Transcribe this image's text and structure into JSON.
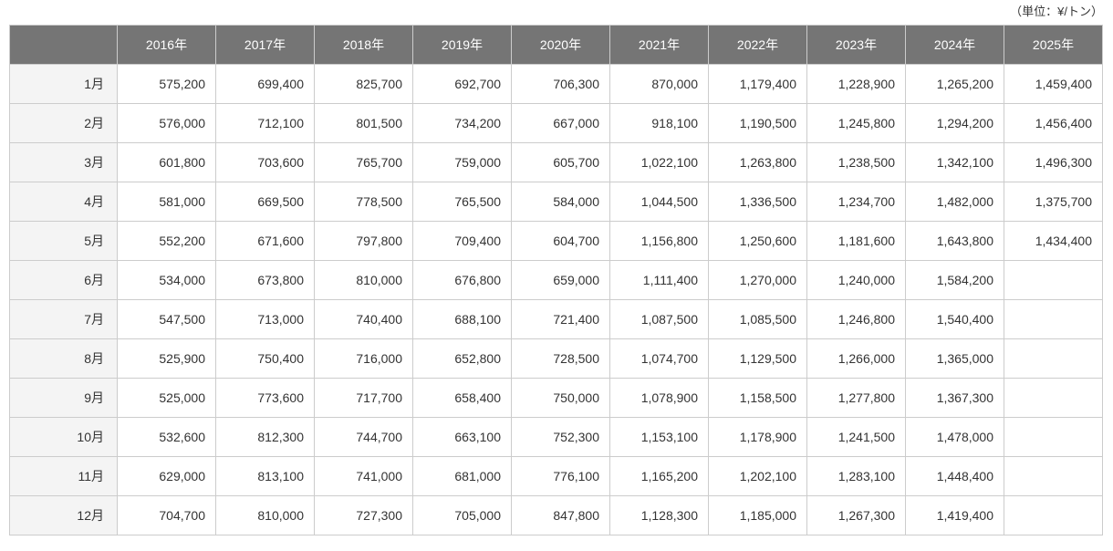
{
  "unit_label": "（単位：¥/トン）",
  "colors": {
    "header_background": "#757575",
    "header_text": "#ffffff",
    "row_label_background": "#f4f4f4",
    "cell_text": "#333333",
    "border": "#cccccc"
  },
  "table": {
    "corner_label": "",
    "columns": [
      "2016年",
      "2017年",
      "2018年",
      "2019年",
      "2020年",
      "2021年",
      "2022年",
      "2023年",
      "2024年",
      "2025年"
    ],
    "rows": [
      {
        "month": "1月",
        "values": [
          "575,200",
          "699,400",
          "825,700",
          "692,700",
          "706,300",
          "870,000",
          "1,179,400",
          "1,228,900",
          "1,265,200",
          "1,459,400"
        ]
      },
      {
        "month": "2月",
        "values": [
          "576,000",
          "712,100",
          "801,500",
          "734,200",
          "667,000",
          "918,100",
          "1,190,500",
          "1,245,800",
          "1,294,200",
          "1,456,400"
        ]
      },
      {
        "month": "3月",
        "values": [
          "601,800",
          "703,600",
          "765,700",
          "759,000",
          "605,700",
          "1,022,100",
          "1,263,800",
          "1,238,500",
          "1,342,100",
          "1,496,300"
        ]
      },
      {
        "month": "4月",
        "values": [
          "581,000",
          "669,500",
          "778,500",
          "765,500",
          "584,000",
          "1,044,500",
          "1,336,500",
          "1,234,700",
          "1,482,000",
          "1,375,700"
        ]
      },
      {
        "month": "5月",
        "values": [
          "552,200",
          "671,600",
          "797,800",
          "709,400",
          "604,700",
          "1,156,800",
          "1,250,600",
          "1,181,600",
          "1,643,800",
          "1,434,400"
        ]
      },
      {
        "month": "6月",
        "values": [
          "534,000",
          "673,800",
          "810,000",
          "676,800",
          "659,000",
          "1,111,400",
          "1,270,000",
          "1,240,000",
          "1,584,200",
          ""
        ]
      },
      {
        "month": "7月",
        "values": [
          "547,500",
          "713,000",
          "740,400",
          "688,100",
          "721,400",
          "1,087,500",
          "1,085,500",
          "1,246,800",
          "1,540,400",
          ""
        ]
      },
      {
        "month": "8月",
        "values": [
          "525,900",
          "750,400",
          "716,000",
          "652,800",
          "728,500",
          "1,074,700",
          "1,129,500",
          "1,266,000",
          "1,365,000",
          ""
        ]
      },
      {
        "month": "9月",
        "values": [
          "525,000",
          "773,600",
          "717,700",
          "658,400",
          "750,000",
          "1,078,900",
          "1,158,500",
          "1,277,800",
          "1,367,300",
          ""
        ]
      },
      {
        "month": "10月",
        "values": [
          "532,600",
          "812,300",
          "744,700",
          "663,100",
          "752,300",
          "1,153,100",
          "1,178,900",
          "1,241,500",
          "1,478,000",
          ""
        ]
      },
      {
        "month": "11月",
        "values": [
          "629,000",
          "813,100",
          "741,000",
          "681,000",
          "776,100",
          "1,165,200",
          "1,202,100",
          "1,283,100",
          "1,448,400",
          ""
        ]
      },
      {
        "month": "12月",
        "values": [
          "704,700",
          "810,000",
          "727,300",
          "705,000",
          "847,800",
          "1,128,300",
          "1,185,000",
          "1,267,300",
          "1,419,400",
          ""
        ]
      }
    ]
  }
}
